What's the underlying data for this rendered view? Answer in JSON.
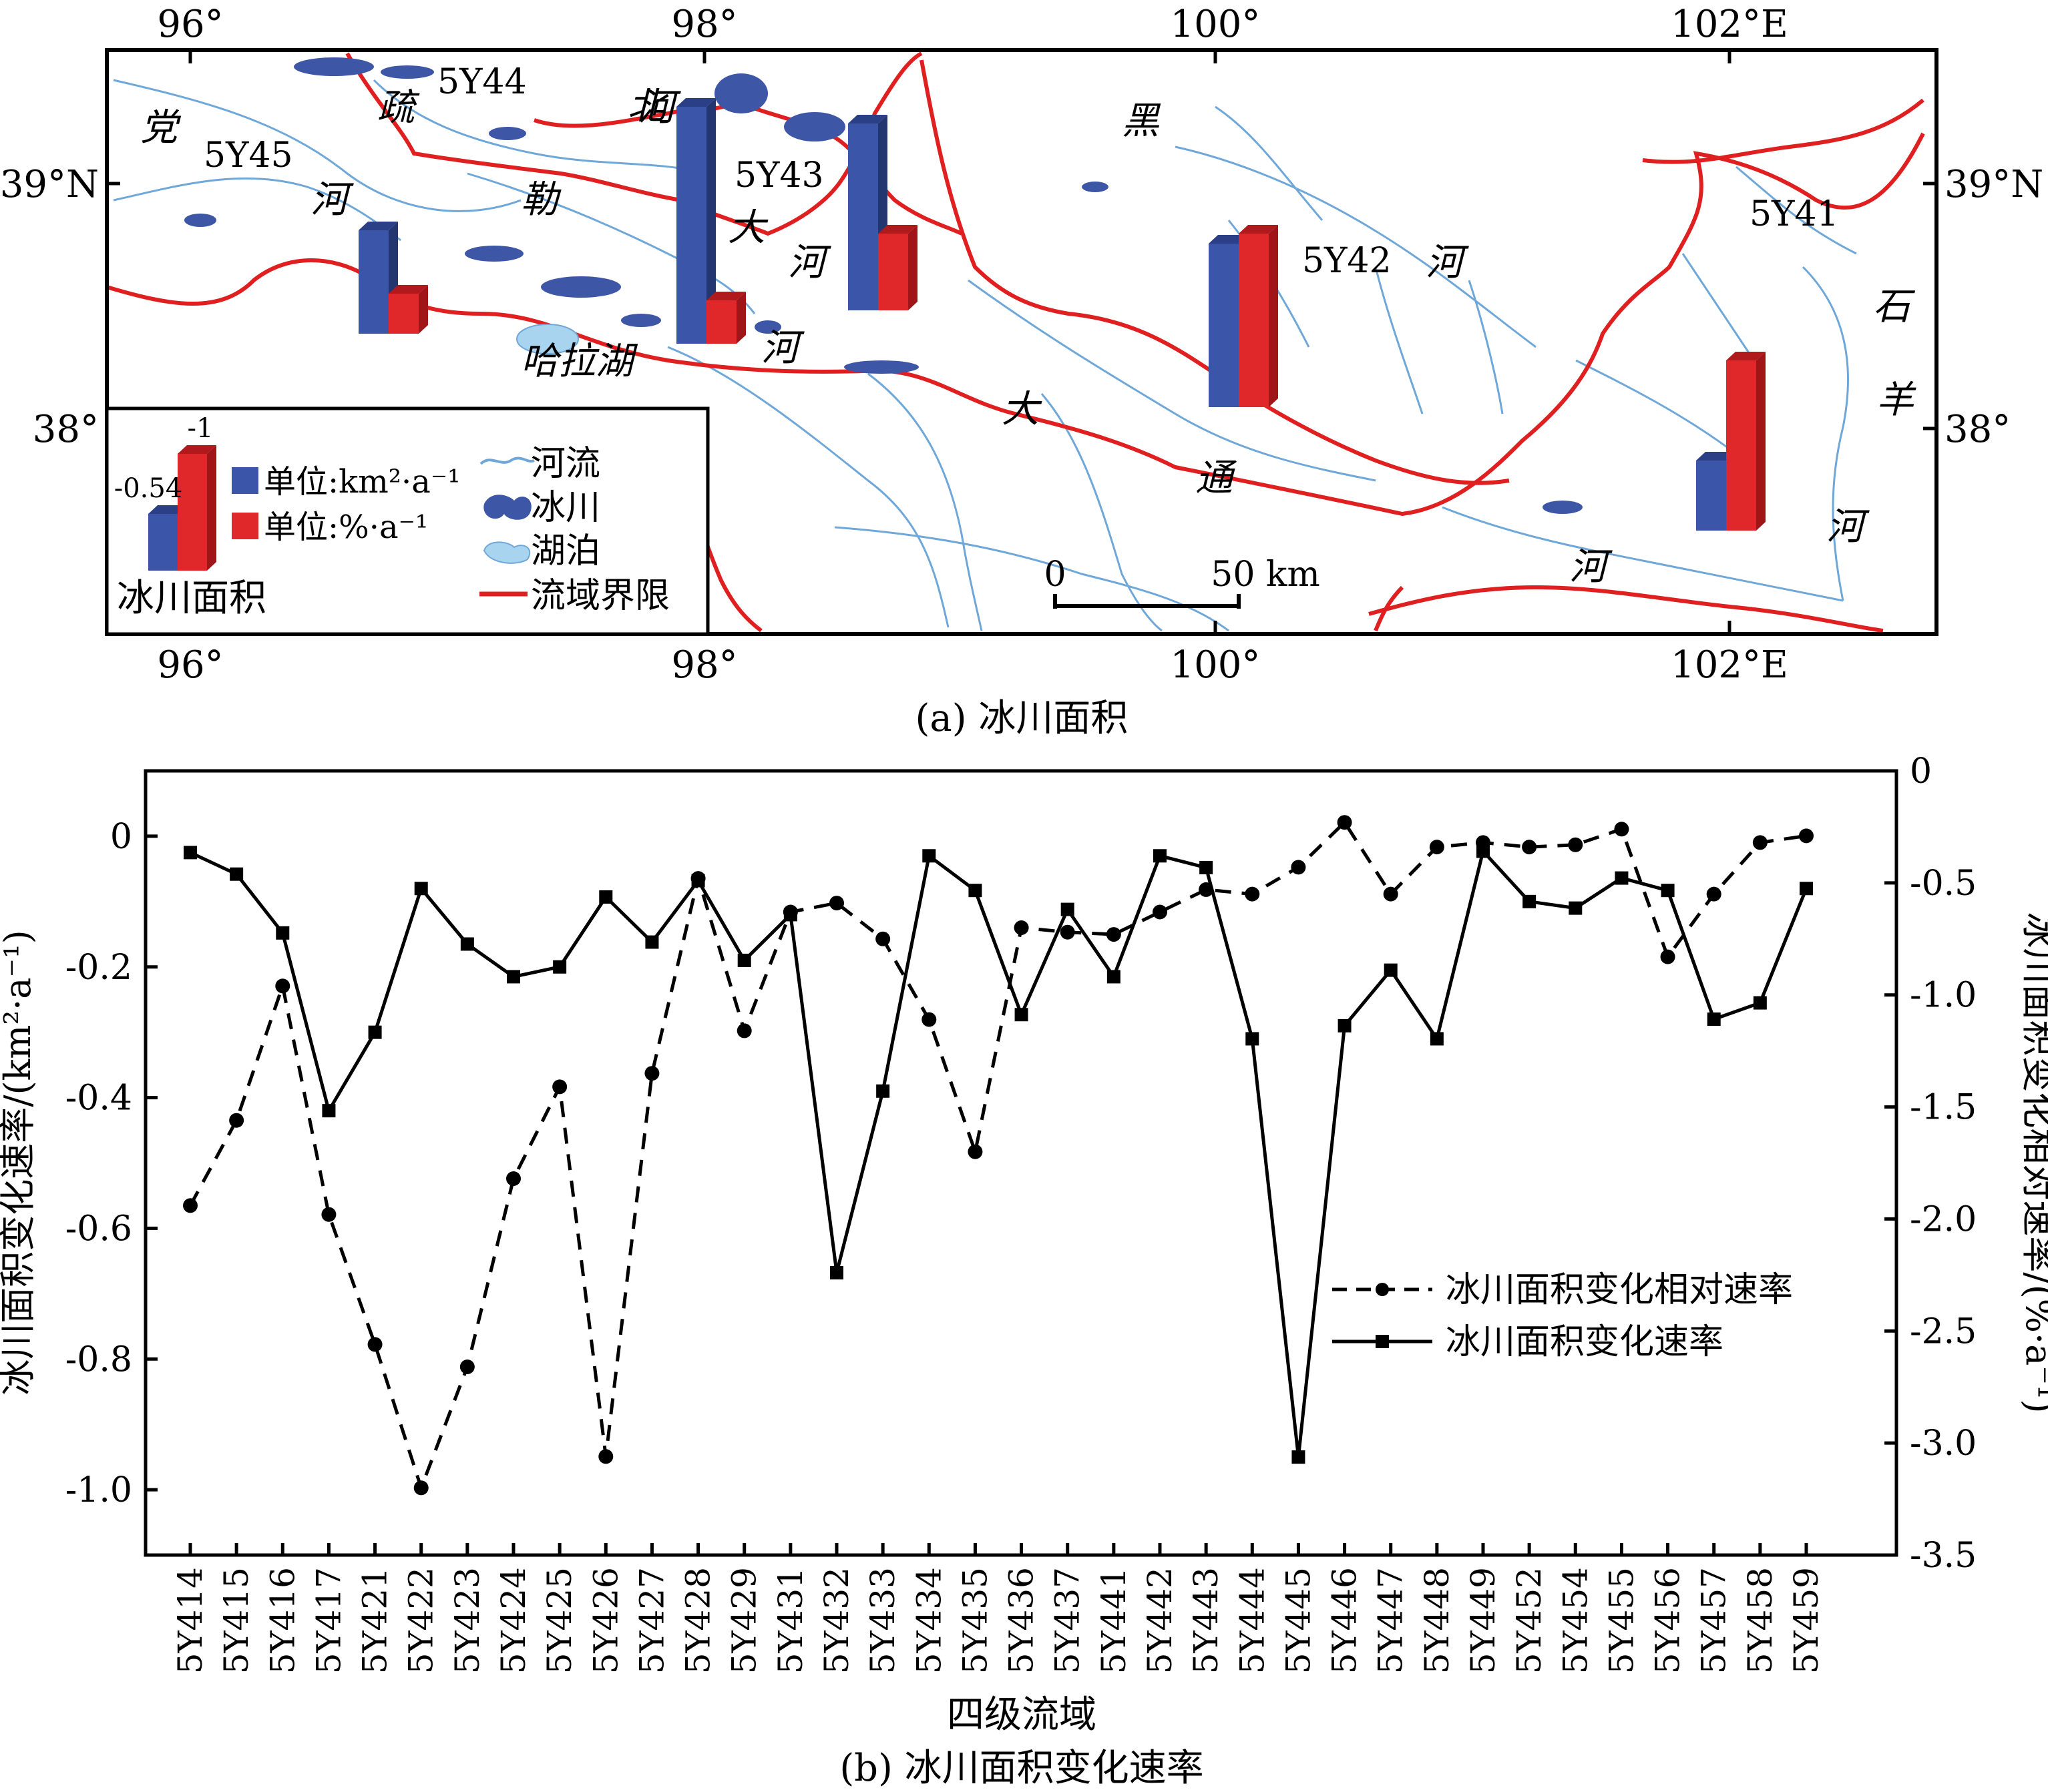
{
  "map_panel": {
    "caption": "(a) 冰川面积",
    "lon_ticks": [
      "96°",
      "98°",
      "100°",
      "102°E"
    ],
    "lat_ticks": [
      "39°N",
      "38°"
    ],
    "basin_codes": [
      "5Y41",
      "5Y42",
      "5Y43",
      "5Y44",
      "5Y45"
    ],
    "place_labels": [
      "党",
      "河",
      "疏",
      "勒",
      "河",
      "北",
      "大",
      "河",
      "河",
      "黑",
      "河",
      "大",
      "通",
      "河",
      "石",
      "羊",
      "河",
      "哈拉湖"
    ],
    "scale_bar": {
      "start": "0",
      "end": "50 km"
    },
    "legend": {
      "sample_values": [
        "-0.54",
        "-1"
      ],
      "area_unit": "单位:km²·a⁻¹",
      "rate_unit": "单位:%·a⁻¹",
      "title": "冰川面积",
      "river": "河流",
      "glacier": "冰川",
      "lake": "湖泊",
      "boundary": "流域界限"
    },
    "colors": {
      "area_bar": "#3b55a8",
      "rate_bar": "#e0282a",
      "river": "#6fa8d8",
      "boundary": "#e02020",
      "glacier": "#3d56a6",
      "lake": "#a8d4f0"
    }
  },
  "chart_data": {
    "type": "line",
    "caption": "(b) 冰川面积变化速率",
    "xlabel": "四级流域",
    "ylabel": "冰川面积变化速率/(km²·a⁻¹)",
    "y2label": "冰川面积变化相对速率/(%·a⁻¹)",
    "ylim": [
      -1.1,
      0.1
    ],
    "y2lim": [
      -3.5,
      0
    ],
    "yticks": [
      0,
      -0.2,
      -0.4,
      -0.6,
      -0.8,
      -1.0
    ],
    "ytick_labels": [
      "0",
      "-0.2",
      "-0.4",
      "-0.6",
      "-0.8",
      "-1.0"
    ],
    "y2ticks": [
      0,
      -0.5,
      -1.0,
      -1.5,
      -2.0,
      -2.5,
      -3.0,
      -3.5
    ],
    "y2tick_labels": [
      "0",
      "-0.5",
      "-1.0",
      "-1.5",
      "-2.0",
      "-2.5",
      "-3.0",
      "-3.5"
    ],
    "categories": [
      "5Y414",
      "5Y415",
      "5Y416",
      "5Y417",
      "5Y421",
      "5Y422",
      "5Y423",
      "5Y424",
      "5Y425",
      "5Y426",
      "5Y427",
      "5Y428",
      "5Y429",
      "5Y431",
      "5Y432",
      "5Y433",
      "5Y434",
      "5Y435",
      "5Y436",
      "5Y437",
      "5Y441",
      "5Y442",
      "5Y443",
      "5Y444",
      "5Y445",
      "5Y446",
      "5Y447",
      "5Y448",
      "5Y449",
      "5Y452",
      "5Y454",
      "5Y455",
      "5Y456",
      "5Y457",
      "5Y458",
      "5Y459"
    ],
    "series": [
      {
        "name": "冰川面积变化相对速率",
        "axis": "right",
        "style": "dashed-circle",
        "values": [
          -1.94,
          -1.56,
          -0.96,
          -1.98,
          -2.56,
          -3.2,
          -2.66,
          -1.82,
          -1.41,
          -3.06,
          -1.35,
          -0.48,
          -1.16,
          -0.63,
          -0.59,
          -0.75,
          -1.11,
          -1.7,
          -0.7,
          -0.72,
          -0.73,
          -0.63,
          -0.53,
          -0.55,
          -0.43,
          -0.23,
          -0.55,
          -0.34,
          -0.32,
          -0.34,
          -0.33,
          -0.26,
          -0.83,
          -0.55,
          -0.32,
          -0.29
        ]
      },
      {
        "name": "冰川面积变化速率",
        "axis": "left",
        "style": "solid-square",
        "values": [
          -0.025,
          -0.058,
          -0.148,
          -0.42,
          -0.3,
          -0.08,
          -0.165,
          -0.215,
          -0.2,
          -0.093,
          -0.162,
          -0.068,
          -0.19,
          -0.12,
          -0.668,
          -0.39,
          -0.03,
          -0.083,
          -0.273,
          -0.112,
          -0.215,
          -0.03,
          -0.048,
          -0.31,
          -0.95,
          -0.29,
          -0.205,
          -0.31,
          -0.023,
          -0.1,
          -0.11,
          -0.064,
          -0.083,
          -0.28,
          -0.255,
          -0.08
        ]
      }
    ],
    "legend_position": "lower-right"
  }
}
